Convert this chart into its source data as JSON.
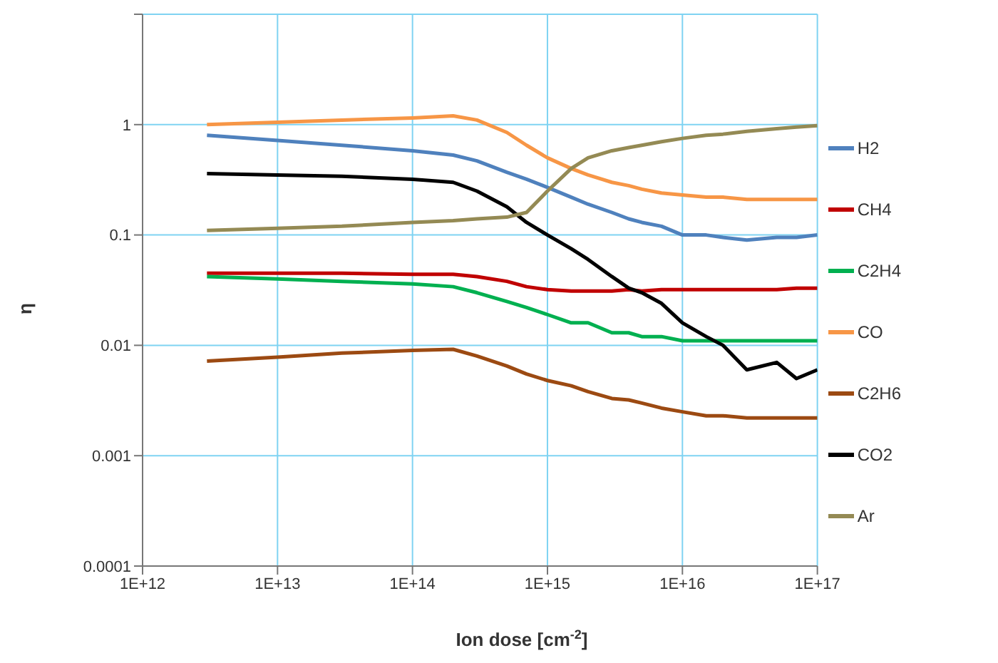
{
  "chart_data": {
    "type": "line",
    "xlabel": "Ion dose [cm$^{-2}$]",
    "ylabel": "η",
    "log": "xy",
    "grid": true,
    "legend": "right",
    "xlim": [
      1000000000000.0,
      1e+17
    ],
    "ylim": [
      0.0001,
      10
    ],
    "xticks": [
      {
        "value": 1000000000000.0,
        "label": "1E+12"
      },
      {
        "value": 10000000000000.0,
        "label": "1E+13"
      },
      {
        "value": 100000000000000.0,
        "label": "1E+14"
      },
      {
        "value": 1000000000000000.0,
        "label": "1E+15"
      },
      {
        "value": 1e+16,
        "label": "1E+16"
      },
      {
        "value": 1e+17,
        "label": "1E+17"
      }
    ],
    "yticks": [
      0.0001,
      0.001,
      0.01,
      0.1,
      1,
      {
        "value": 10,
        "label": null
      }
    ],
    "x": [
      3000000000000.0,
      10000000000000.0,
      30000000000000.0,
      100000000000000.0,
      200000000000000.0,
      300000000000000.0,
      500000000000000.0,
      700000000000000.0,
      1000000000000000.0,
      1500000000000000.0,
      2000000000000000.0,
      3000000000000000.0,
      4000000000000000.0,
      5000000000000000.0,
      7000000000000000.0,
      1e+16,
      1.5e+16,
      2e+16,
      3e+16,
      5e+16,
      7e+16,
      1e+17
    ],
    "series": [
      {
        "name": "H2",
        "color": "#4f81bd",
        "values": [
          0.8,
          0.72,
          0.65,
          0.58,
          0.53,
          0.47,
          0.37,
          0.32,
          0.27,
          0.22,
          0.19,
          0.16,
          0.14,
          0.13,
          0.12,
          0.1,
          0.1,
          0.095,
          0.09,
          0.095,
          0.095,
          0.1
        ]
      },
      {
        "name": "CH4",
        "color": "#c00000",
        "values": [
          0.045,
          0.045,
          0.045,
          0.044,
          0.044,
          0.042,
          0.038,
          0.034,
          0.032,
          0.031,
          0.031,
          0.031,
          0.032,
          0.031,
          0.032,
          0.032,
          0.032,
          0.032,
          0.032,
          0.032,
          0.033,
          0.033
        ]
      },
      {
        "name": "C2H4",
        "color": "#00b050",
        "values": [
          0.042,
          0.04,
          0.038,
          0.036,
          0.034,
          0.03,
          0.025,
          0.022,
          0.019,
          0.016,
          0.016,
          0.013,
          0.013,
          0.012,
          0.012,
          0.011,
          0.011,
          0.011,
          0.011,
          0.011,
          0.011,
          0.011
        ]
      },
      {
        "name": "CO",
        "color": "#f79646",
        "values": [
          1.0,
          1.05,
          1.1,
          1.15,
          1.2,
          1.1,
          0.85,
          0.65,
          0.5,
          0.4,
          0.35,
          0.3,
          0.28,
          0.26,
          0.24,
          0.23,
          0.22,
          0.22,
          0.21,
          0.21,
          0.21,
          0.21
        ]
      },
      {
        "name": "C2H6",
        "color": "#9c4a12",
        "values": [
          0.0072,
          0.0078,
          0.0085,
          0.009,
          0.0092,
          0.008,
          0.0065,
          0.0055,
          0.0048,
          0.0043,
          0.0038,
          0.0033,
          0.0032,
          0.003,
          0.0027,
          0.0025,
          0.0023,
          0.0023,
          0.0022,
          0.0022,
          0.0022,
          0.0022
        ]
      },
      {
        "name": "CO2",
        "color": "#000000",
        "values": [
          0.36,
          0.35,
          0.34,
          0.32,
          0.3,
          0.25,
          0.18,
          0.13,
          0.1,
          0.075,
          0.06,
          0.042,
          0.033,
          0.03,
          0.024,
          0.016,
          0.012,
          0.01,
          0.006,
          0.007,
          0.005,
          0.006
        ]
      },
      {
        "name": "Ar",
        "color": "#948a54",
        "values": [
          0.11,
          0.115,
          0.12,
          0.13,
          0.135,
          0.14,
          0.145,
          0.16,
          0.25,
          0.4,
          0.5,
          0.58,
          0.62,
          0.65,
          0.7,
          0.75,
          0.8,
          0.82,
          0.87,
          0.92,
          0.95,
          0.98
        ]
      }
    ]
  }
}
